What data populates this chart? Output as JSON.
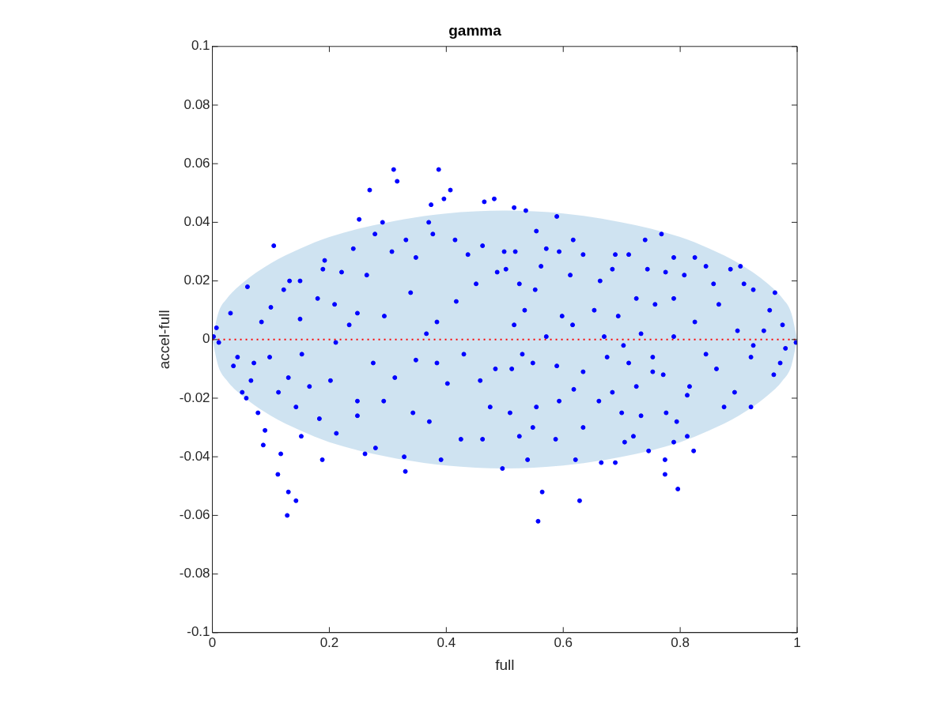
{
  "chart_data": {
    "type": "scatter",
    "title": "gamma",
    "xlabel": "full",
    "ylabel": "accel-full",
    "xlim": [
      0,
      1
    ],
    "ylim": [
      -0.1,
      0.1
    ],
    "xticks": [
      0,
      0.2,
      0.4,
      0.6,
      0.8,
      1
    ],
    "yticks": [
      -0.1,
      -0.08,
      -0.06,
      -0.04,
      -0.02,
      0,
      0.02,
      0.04,
      0.06,
      0.08,
      0.1
    ],
    "grid": false,
    "legend": false,
    "series": [
      {
        "color": "#0000ff",
        "marker": "circle",
        "x": [
          0.31,
          0.316,
          0.387,
          0.269,
          0.407,
          0.396,
          0.374,
          0.482,
          0.465,
          0.251,
          0.105,
          0.06,
          0.291,
          0.37,
          0.278,
          0.241,
          0.192,
          0.132,
          0.15,
          0.122,
          0.031,
          0.007,
          0.002,
          0.011,
          0.036,
          0.051,
          0.058,
          0.078,
          0.09,
          0.087,
          0.112,
          0.13,
          0.143,
          0.128,
          0.117,
          0.188,
          0.261,
          0.33,
          0.391,
          0.496,
          0.328,
          0.279,
          0.212,
          0.152,
          0.066,
          0.043,
          0.084,
          0.1,
          0.189,
          0.221,
          0.15,
          0.18,
          0.209,
          0.234,
          0.264,
          0.307,
          0.331,
          0.348,
          0.339,
          0.377,
          0.415,
          0.437,
          0.462,
          0.499,
          0.487,
          0.451,
          0.417,
          0.384,
          0.366,
          0.294,
          0.248,
          0.211,
          0.275,
          0.312,
          0.348,
          0.384,
          0.402,
          0.43,
          0.458,
          0.484,
          0.475,
          0.425,
          0.462,
          0.371,
          0.343,
          0.293,
          0.248,
          0.202,
          0.166,
          0.13,
          0.113,
          0.098,
          0.071,
          0.153,
          0.183,
          0.143,
          0.248,
          0.516,
          0.536,
          0.589,
          0.554,
          0.617,
          0.74,
          0.768,
          0.903,
          0.962,
          0.886,
          0.844,
          0.825,
          0.789,
          0.712,
          0.689,
          0.634,
          0.593,
          0.571,
          0.562,
          0.518,
          0.502,
          0.612,
          0.663,
          0.684,
          0.744,
          0.775,
          0.807,
          0.857,
          0.925,
          0.909,
          0.953,
          0.975,
          0.943,
          0.998,
          0.98,
          0.971,
          0.96,
          0.921,
          0.875,
          0.893,
          0.862,
          0.816,
          0.844,
          0.789,
          0.753,
          0.771,
          0.812,
          0.776,
          0.794,
          0.812,
          0.823,
          0.789,
          0.746,
          0.774,
          0.796,
          0.774,
          0.705,
          0.72,
          0.689,
          0.665,
          0.628,
          0.564,
          0.557,
          0.539,
          0.621,
          0.587,
          0.634,
          0.548,
          0.525,
          0.509,
          0.554,
          0.593,
          0.618,
          0.661,
          0.7,
          0.733,
          0.684,
          0.725,
          0.753,
          0.712,
          0.675,
          0.634,
          0.589,
          0.548,
          0.512,
          0.53,
          0.571,
          0.616,
          0.653,
          0.694,
          0.725,
          0.757,
          0.789,
          0.825,
          0.866,
          0.898,
          0.925,
          0.921,
          0.733,
          0.703,
          0.67,
          0.598,
          0.534,
          0.516,
          0.552,
          0.525
        ],
        "values": [
          0.058,
          0.054,
          0.058,
          0.051,
          0.051,
          0.048,
          0.046,
          0.048,
          0.047,
          0.041,
          0.032,
          0.018,
          0.04,
          0.04,
          0.036,
          0.031,
          0.027,
          0.02,
          0.02,
          0.017,
          0.009,
          0.004,
          0.001,
          -0.001,
          -0.009,
          -0.018,
          -0.02,
          -0.025,
          -0.031,
          -0.036,
          -0.046,
          -0.052,
          -0.055,
          -0.06,
          -0.039,
          -0.041,
          -0.039,
          -0.045,
          -0.041,
          -0.044,
          -0.04,
          -0.037,
          -0.032,
          -0.033,
          -0.014,
          -0.006,
          0.006,
          0.011,
          0.024,
          0.023,
          0.007,
          0.014,
          0.012,
          0.005,
          0.022,
          0.03,
          0.034,
          0.028,
          0.016,
          0.036,
          0.034,
          0.029,
          0.032,
          0.03,
          0.023,
          0.019,
          0.013,
          0.006,
          0.002,
          0.008,
          0.009,
          -0.001,
          -0.008,
          -0.013,
          -0.007,
          -0.008,
          -0.015,
          -0.005,
          -0.014,
          -0.01,
          -0.023,
          -0.034,
          -0.034,
          -0.028,
          -0.025,
          -0.021,
          -0.021,
          -0.014,
          -0.016,
          -0.013,
          -0.018,
          -0.006,
          -0.008,
          -0.005,
          -0.027,
          -0.023,
          -0.026,
          0.045,
          0.044,
          0.042,
          0.037,
          0.034,
          0.034,
          0.036,
          0.025,
          0.016,
          0.024,
          0.025,
          0.028,
          0.028,
          0.029,
          0.029,
          0.029,
          0.03,
          0.031,
          0.025,
          0.03,
          0.024,
          0.022,
          0.02,
          0.024,
          0.024,
          0.023,
          0.022,
          0.019,
          0.017,
          0.019,
          0.01,
          0.005,
          0.003,
          -0.001,
          -0.003,
          -0.008,
          -0.012,
          -0.023,
          -0.023,
          -0.018,
          -0.01,
          -0.016,
          -0.005,
          0.001,
          -0.006,
          -0.012,
          -0.019,
          -0.025,
          -0.028,
          -0.033,
          -0.038,
          -0.035,
          -0.038,
          -0.046,
          -0.051,
          -0.041,
          -0.035,
          -0.033,
          -0.042,
          -0.042,
          -0.055,
          -0.052,
          -0.062,
          -0.041,
          -0.041,
          -0.034,
          -0.03,
          -0.03,
          -0.033,
          -0.025,
          -0.023,
          -0.021,
          -0.017,
          -0.021,
          -0.025,
          -0.026,
          -0.018,
          -0.016,
          -0.011,
          -0.008,
          -0.006,
          -0.011,
          -0.009,
          -0.008,
          -0.01,
          -0.005,
          0.001,
          0.005,
          0.01,
          0.008,
          0.014,
          0.012,
          0.014,
          0.006,
          0.012,
          0.003,
          -0.002,
          -0.006,
          0.002,
          -0.002,
          0.001,
          0.008,
          0.01,
          0.005,
          0.017,
          0.019
        ]
      },
      {
        "type": "line",
        "color": "#ff0000",
        "line_style": "dotted",
        "marker": "none",
        "x": [
          0,
          0.01,
          0.025,
          0.05,
          0.1,
          0.15,
          0.2,
          0.3,
          0.4,
          0.5,
          0.6,
          0.7,
          0.8,
          0.85,
          0.9,
          0.95,
          0.975,
          0.99,
          1
        ],
        "values": [
          0,
          0,
          0,
          0,
          0,
          0,
          0,
          0,
          0,
          0,
          0,
          0,
          0,
          0,
          0,
          0,
          0,
          0,
          0
        ],
        "upper": [
          0,
          0.009,
          0.014,
          0.019,
          0.026,
          0.031,
          0.035,
          0.04,
          0.043,
          0.044,
          0.043,
          0.04,
          0.035,
          0.031,
          0.026,
          0.019,
          0.014,
          0.009,
          0
        ],
        "lower": [
          0,
          -0.009,
          -0.014,
          -0.019,
          -0.026,
          -0.031,
          -0.035,
          -0.04,
          -0.043,
          -0.044,
          -0.043,
          -0.04,
          -0.035,
          -0.031,
          -0.026,
          -0.019,
          -0.014,
          -0.009,
          0
        ]
      }
    ]
  }
}
